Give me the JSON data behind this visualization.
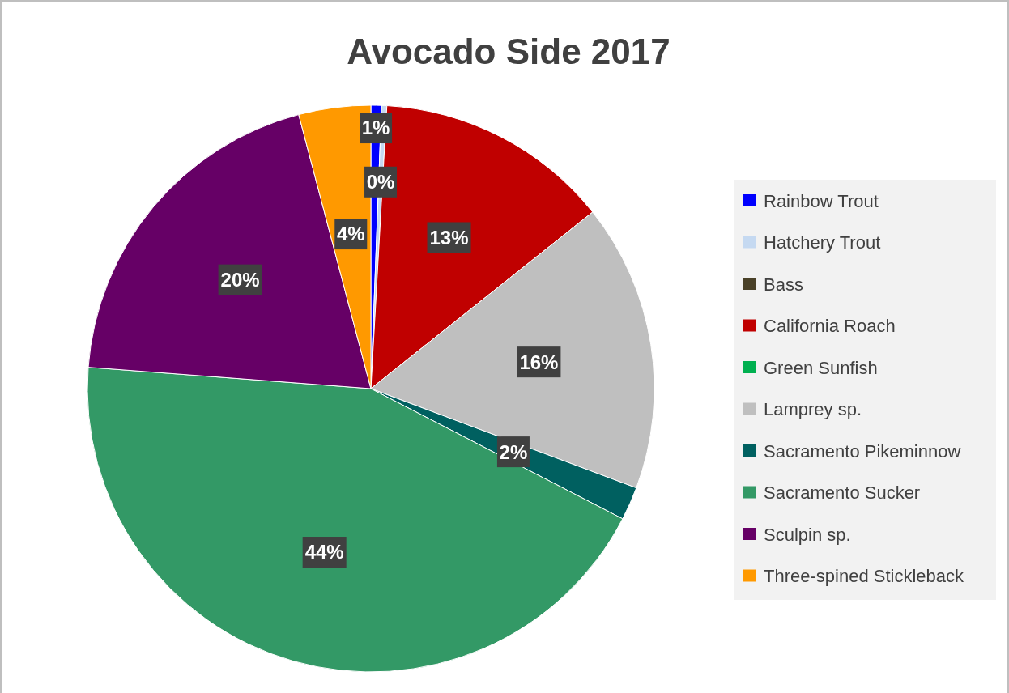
{
  "chart_data": {
    "type": "pie",
    "title": "Avocado Side 2017",
    "categories": [
      "Rainbow Trout",
      "Hatchery Trout",
      "Bass",
      "California Roach",
      "Green Sunfish",
      "Lamprey sp.",
      "Sacramento Pikeminnow",
      "Sacramento Sucker",
      "Sculpin sp.",
      "Three-spined Stickleback"
    ],
    "values": [
      0.6,
      0.3,
      0,
      13.4,
      0,
      16.4,
      1.9,
      43.6,
      19.7,
      4.1
    ],
    "colors": [
      "#0000ff",
      "#c5d9f1",
      "#4a4128",
      "#c00000",
      "#00b050",
      "#bfbfbf",
      "#006060",
      "#339966",
      "#660066",
      "#ff9900"
    ],
    "value_labels": [
      "1%",
      "0%",
      null,
      "13%",
      null,
      "16%",
      "2%",
      "44%",
      "20%",
      "4%"
    ],
    "legend": "right"
  }
}
